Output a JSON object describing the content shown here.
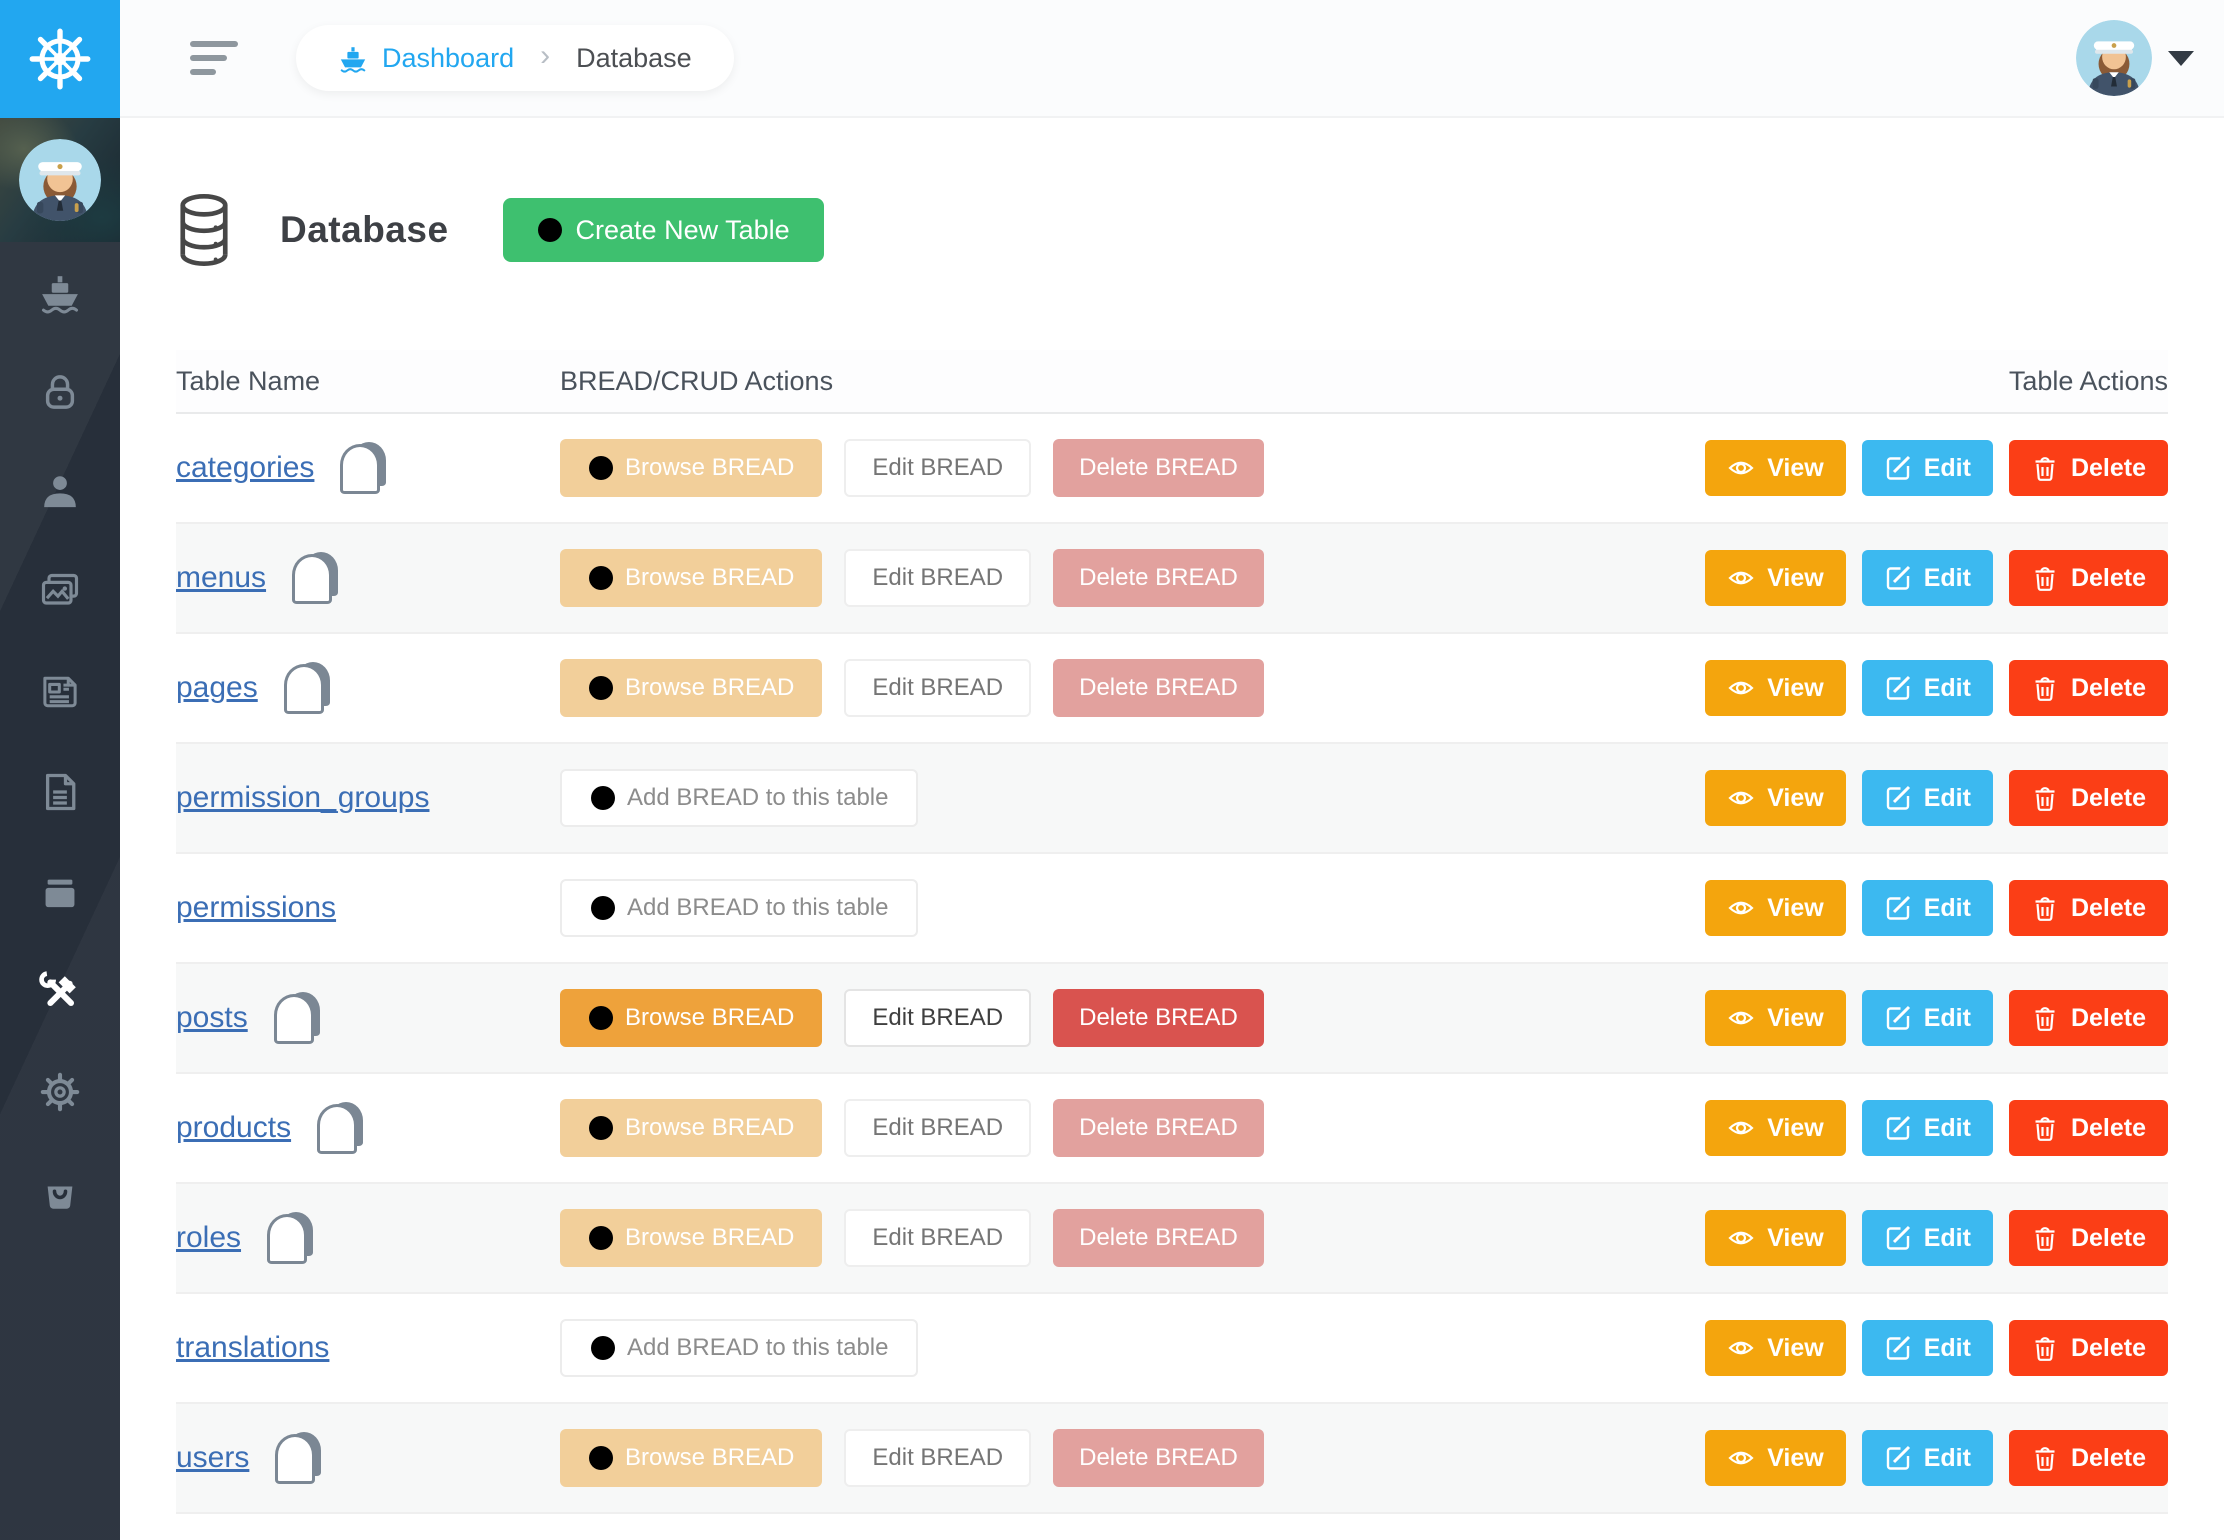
{
  "sidebar": {
    "logo_icon": "helm-icon",
    "items": [
      {
        "icon": "ship",
        "name": "dashboard",
        "active": false
      },
      {
        "icon": "lock",
        "name": "roles",
        "active": false
      },
      {
        "icon": "person",
        "name": "users",
        "active": false
      },
      {
        "icon": "images",
        "name": "media",
        "active": false
      },
      {
        "icon": "news",
        "name": "posts",
        "active": false
      },
      {
        "icon": "file",
        "name": "pages",
        "active": false
      },
      {
        "icon": "box",
        "name": "categories",
        "active": false
      },
      {
        "icon": "tools",
        "name": "tools",
        "active": true
      },
      {
        "icon": "gear",
        "name": "settings",
        "active": false
      },
      {
        "icon": "bag",
        "name": "hooks",
        "active": false
      }
    ]
  },
  "topbar": {
    "breadcrumb": {
      "dashboard": "Dashboard",
      "separator": "›",
      "current": "Database"
    }
  },
  "page": {
    "title": "Database",
    "create_button": "Create New Table"
  },
  "table": {
    "headers": {
      "name": "Table Name",
      "bread": "BREAD/CRUD Actions",
      "actions": "Table Actions"
    },
    "bread_buttons": {
      "browse": "Browse BREAD",
      "edit": "Edit BREAD",
      "delete": "Delete BREAD",
      "add": "Add BREAD to this table"
    },
    "action_buttons": {
      "view": "View",
      "edit": "Edit",
      "delete": "Delete"
    },
    "rows": [
      {
        "name": "categories",
        "has_bread": true,
        "state": "faded"
      },
      {
        "name": "menus",
        "has_bread": true,
        "state": "faded"
      },
      {
        "name": "pages",
        "has_bread": true,
        "state": "faded"
      },
      {
        "name": "permission_groups",
        "has_bread": false,
        "state": "none"
      },
      {
        "name": "permissions",
        "has_bread": false,
        "state": "none"
      },
      {
        "name": "posts",
        "has_bread": true,
        "state": "solid"
      },
      {
        "name": "products",
        "has_bread": true,
        "state": "faded"
      },
      {
        "name": "roles",
        "has_bread": true,
        "state": "faded"
      },
      {
        "name": "translations",
        "has_bread": false,
        "state": "none"
      },
      {
        "name": "users",
        "has_bread": true,
        "state": "faded"
      }
    ]
  },
  "colors": {
    "brand_blue": "#22a7f0",
    "sidebar_bg": "#272f3a",
    "create_green": "#3ec06f",
    "link_blue": "#3b6eb5",
    "browse_orange": "#eea23b",
    "browse_orange_faded": "#f2cf9a",
    "delete_bread_red": "#d9534f",
    "delete_bread_red_faded": "#e2a19e",
    "view_amber": "#f4a50d",
    "edit_blue": "#3cb9f0",
    "delete_red": "#fb3e16"
  }
}
